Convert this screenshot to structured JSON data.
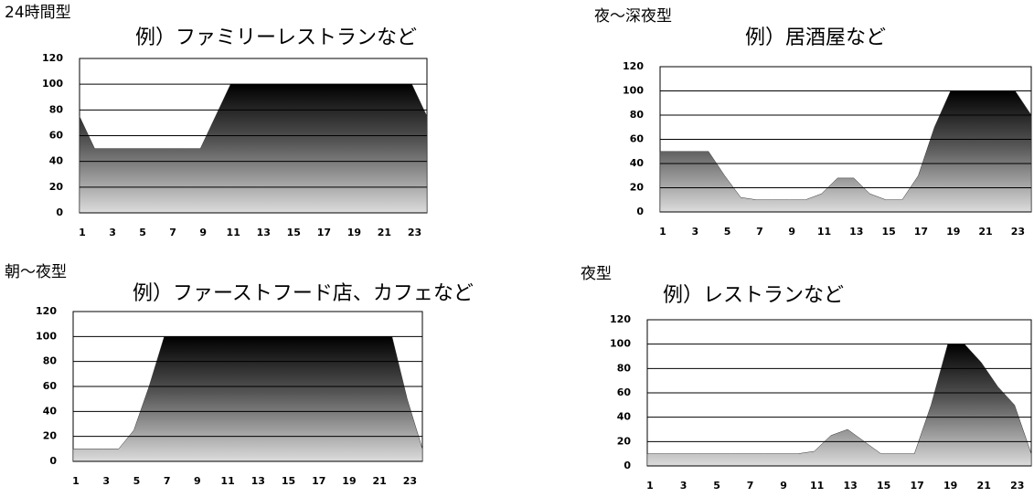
{
  "chart_data": [
    {
      "type": "area",
      "title": "24時間型",
      "subtitle": "例）ファミリーレストランなど",
      "categories": [
        1,
        null,
        3,
        null,
        5,
        null,
        7,
        null,
        9,
        null,
        11,
        null,
        13,
        null,
        15,
        null,
        17,
        null,
        19,
        null,
        21,
        null,
        23,
        null
      ],
      "values": [
        75,
        50,
        50,
        50,
        50,
        50,
        50,
        50,
        50,
        75,
        100,
        100,
        100,
        100,
        100,
        100,
        100,
        100,
        100,
        100,
        100,
        100,
        100,
        75
      ],
      "color": "#000000",
      "ylim": [
        0,
        120
      ],
      "yticks": [
        0,
        20,
        40,
        60,
        80,
        100,
        120
      ],
      "grid": true
    },
    {
      "type": "area",
      "title": "夜〜深夜型",
      "subtitle": "例）居酒屋など",
      "categories": [
        1,
        null,
        3,
        null,
        5,
        null,
        7,
        null,
        9,
        null,
        11,
        null,
        13,
        null,
        15,
        null,
        17,
        null,
        19,
        null,
        21,
        null,
        23,
        null
      ],
      "values": [
        50,
        50,
        50,
        50,
        30,
        12,
        10,
        10,
        10,
        10,
        15,
        28,
        28,
        15,
        10,
        10,
        30,
        70,
        100,
        100,
        100,
        100,
        100,
        80
      ],
      "color": "#000000",
      "ylim": [
        0,
        120
      ],
      "yticks": [
        0,
        20,
        40,
        60,
        80,
        100,
        120
      ],
      "grid": true
    },
    {
      "type": "area",
      "title": "朝〜夜型",
      "subtitle": "例）ファーストフード店、カフェなど",
      "categories": [
        1,
        null,
        3,
        null,
        5,
        null,
        7,
        null,
        9,
        null,
        11,
        null,
        13,
        null,
        15,
        null,
        17,
        null,
        19,
        null,
        21,
        null,
        23,
        null
      ],
      "values": [
        10,
        10,
        10,
        10,
        25,
        60,
        100,
        100,
        100,
        100,
        100,
        100,
        100,
        100,
        100,
        100,
        100,
        100,
        100,
        100,
        100,
        100,
        50,
        10
      ],
      "color": "#000000",
      "ylim": [
        0,
        120
      ],
      "yticks": [
        0,
        20,
        40,
        60,
        80,
        100,
        120
      ],
      "grid": true
    },
    {
      "type": "area",
      "title": "夜型",
      "subtitle": "例）レストランなど",
      "categories": [
        1,
        null,
        3,
        null,
        5,
        null,
        7,
        null,
        9,
        null,
        11,
        null,
        13,
        null,
        15,
        null,
        17,
        null,
        19,
        null,
        21,
        null,
        23,
        null
      ],
      "values": [
        10,
        10,
        10,
        10,
        10,
        10,
        10,
        10,
        10,
        10,
        12,
        25,
        30,
        20,
        10,
        10,
        10,
        50,
        100,
        100,
        85,
        65,
        50,
        10
      ],
      "color": "#000000",
      "ylim": [
        0,
        120
      ],
      "yticks": [
        0,
        20,
        40,
        60,
        80,
        100,
        120
      ],
      "grid": true
    }
  ]
}
